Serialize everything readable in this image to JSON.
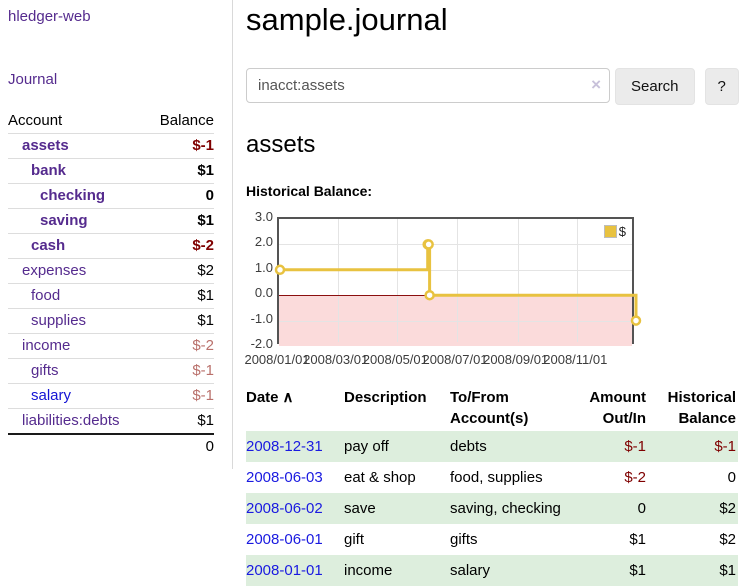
{
  "sidebar": {
    "brand": "hledger-web",
    "nav": {
      "journal_label": "Journal"
    },
    "accounts_table": {
      "headers": {
        "account": "Account",
        "balance": "Balance"
      },
      "rows": [
        {
          "name": "assets",
          "depth": 1,
          "bold": true,
          "balance": "$-1",
          "balance_tone": "negative",
          "link_state": "visited"
        },
        {
          "name": "bank",
          "depth": 2,
          "bold": true,
          "balance": "$1",
          "balance_tone": "positive",
          "link_state": "visited"
        },
        {
          "name": "checking",
          "depth": 3,
          "bold": true,
          "balance": "0",
          "balance_tone": "positive",
          "link_state": "visited"
        },
        {
          "name": "saving",
          "depth": 3,
          "bold": true,
          "balance": "$1",
          "balance_tone": "positive",
          "link_state": "visited"
        },
        {
          "name": "cash",
          "depth": 2,
          "bold": true,
          "balance": "$-2",
          "balance_tone": "negative",
          "link_state": "visited"
        },
        {
          "name": "expenses",
          "depth": 1,
          "bold": false,
          "balance": "$2",
          "balance_tone": "positive",
          "link_state": "visited"
        },
        {
          "name": "food",
          "depth": 2,
          "bold": false,
          "balance": "$1",
          "balance_tone": "positive",
          "link_state": "visited"
        },
        {
          "name": "supplies",
          "depth": 2,
          "bold": false,
          "balance": "$1",
          "balance_tone": "positive",
          "link_state": "visited"
        },
        {
          "name": "income",
          "depth": 1,
          "bold": false,
          "balance": "$-2",
          "balance_tone": "negative-muted",
          "link_state": "visited"
        },
        {
          "name": "gifts",
          "depth": 2,
          "bold": false,
          "balance": "$-1",
          "balance_tone": "negative-muted",
          "link_state": "visited"
        },
        {
          "name": "salary",
          "depth": 2,
          "bold": false,
          "balance": "$-1",
          "balance_tone": "negative-muted",
          "link_state": "unvisited"
        },
        {
          "name": "liabilities:debts",
          "depth": 1,
          "bold": false,
          "balance": "$1",
          "balance_tone": "positive",
          "link_state": "visited"
        }
      ],
      "total": "0"
    }
  },
  "header": {
    "title": "sample.journal"
  },
  "search": {
    "value": "inacct:assets",
    "clear_icon": "×",
    "button_label": "Search",
    "help_label": "?"
  },
  "account_page": {
    "heading": "assets",
    "chart_label": "Historical Balance:"
  },
  "chart_data": {
    "type": "line",
    "step": true,
    "title": "Historical Balance",
    "x": [
      "2008-01-01",
      "2008-06-01",
      "2008-06-02",
      "2008-06-03",
      "2008-12-31"
    ],
    "series": [
      {
        "name": "$",
        "values": [
          1,
          2,
          2,
          0,
          -1
        ]
      }
    ],
    "xlim": [
      "2008-01-01",
      "2008-12-31"
    ],
    "ylim": [
      -2,
      3
    ],
    "yticks": [
      "3.0",
      "2.0",
      "1.0",
      "0.0",
      "-1.0",
      "-2.0"
    ],
    "xticks": [
      "2008/01/01",
      "2008/03/01",
      "2008/05/01",
      "2008/07/01",
      "2008/09/01",
      "2008/11/01"
    ],
    "grid": true,
    "legend_position": "top-right",
    "legend": [
      {
        "label": "$",
        "color": "#e8c240"
      }
    ],
    "line_color": "#e8c240",
    "negative_region_color": "#fbdbdb",
    "zero_line_color": "#8b0f0f"
  },
  "register": {
    "headers": {
      "date": "Date",
      "sort_icon": "∧",
      "description": "Description",
      "account": "To/From\nAccount(s)",
      "amount": "Amount\nOut/In",
      "balance": "Historical\nBalance"
    },
    "rows": [
      {
        "date": "2008-12-31",
        "description": "pay off",
        "accounts": "debts",
        "amount": "$-1",
        "amount_tone": "negative",
        "balance": "$-1",
        "balance_tone": "negative"
      },
      {
        "date": "2008-06-03",
        "description": "eat & shop",
        "accounts": "food, supplies",
        "amount": "$-2",
        "amount_tone": "negative",
        "balance": "0",
        "balance_tone": "positive"
      },
      {
        "date": "2008-06-02",
        "description": "save",
        "accounts": "saving, checking",
        "amount": "0",
        "amount_tone": "positive",
        "balance": "$2",
        "balance_tone": "positive"
      },
      {
        "date": "2008-06-01",
        "description": "gift",
        "accounts": "gifts",
        "amount": "$1",
        "amount_tone": "positive",
        "balance": "$2",
        "balance_tone": "positive"
      },
      {
        "date": "2008-01-01",
        "description": "income",
        "accounts": "salary",
        "amount": "$1",
        "amount_tone": "positive",
        "balance": "$1",
        "balance_tone": "positive"
      }
    ]
  },
  "colors": {
    "link_visited_purple": "#552b8e",
    "link_unvisited_blue": "#1414d4",
    "date_link_blue": "#1a1ae0",
    "negative_amount": "#7f0000",
    "negative_amount_muted": "#b9706b",
    "row_stripe_green": "#ddeedd",
    "chart_line_gold": "#e8c240",
    "chart_negative_fill": "#fbdbdb",
    "chart_zero_line": "#8b0f0f"
  }
}
